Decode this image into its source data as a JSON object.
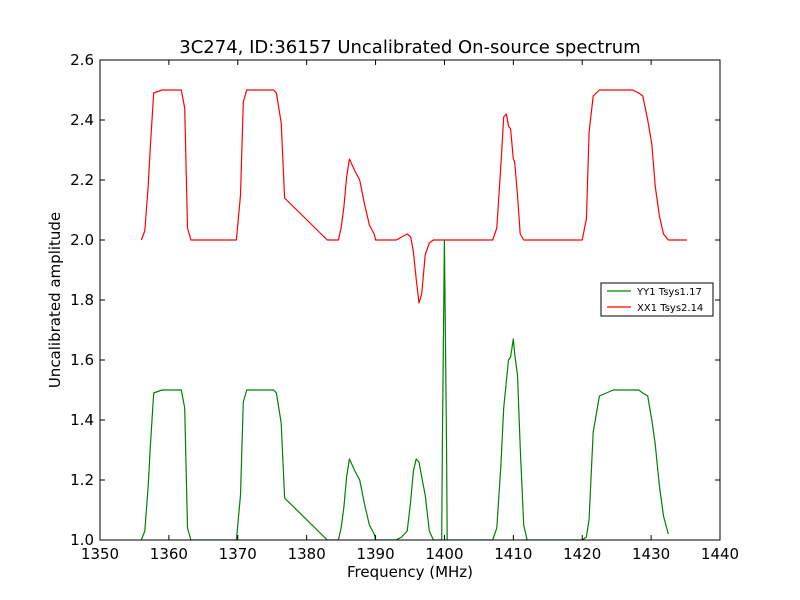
{
  "chart_data": {
    "type": "line",
    "title": "3C274, ID:36157 Uncalibrated On-source spectrum",
    "xlabel": "Frequency (MHz)",
    "ylabel": "Uncalibrated amplitude",
    "xlim": [
      1350,
      1440
    ],
    "ylim": [
      1.0,
      2.6
    ],
    "xticks": [
      1350,
      1360,
      1370,
      1380,
      1390,
      1400,
      1410,
      1420,
      1430,
      1440
    ],
    "yticks": [
      1.0,
      1.2,
      1.4,
      1.6,
      1.8,
      2.0,
      2.2,
      2.4,
      2.6
    ],
    "xtick_labels": [
      "1350",
      "1360",
      "1370",
      "1380",
      "1390",
      "1400",
      "1410",
      "1420",
      "1430",
      "1440"
    ],
    "ytick_labels": [
      "1.0",
      "1.2",
      "1.4",
      "1.6",
      "1.8",
      "2.0",
      "2.2",
      "2.4",
      "2.6"
    ],
    "grid": false,
    "legend_position": "center-right",
    "series": [
      {
        "name": "YY1 Tsys1.17",
        "color": "#008000",
        "x": [
          1356.0,
          1356.5,
          1357.0,
          1357.3,
          1357.8,
          1359.0,
          1360.5,
          1361.8,
          1362.3,
          1362.7,
          1363.2,
          1369.0,
          1369.8,
          1370.4,
          1370.8,
          1371.3,
          1372.5,
          1374.0,
          1375.2,
          1375.6,
          1376.3,
          1376.8,
          1383.0,
          1384.0,
          1384.6,
          1385.0,
          1385.4,
          1385.8,
          1386.2,
          1387.0,
          1387.7,
          1388.4,
          1389.1,
          1389.8,
          1390.0,
          1393.0,
          1393.8,
          1394.6,
          1395.1,
          1395.5,
          1395.9,
          1396.3,
          1396.7,
          1397.2,
          1397.8,
          1398.4,
          1399.0,
          1399.4,
          1399.6,
          1399.7,
          1400.0,
          1400.3,
          1400.4,
          1400.5,
          1401.0,
          1405.0,
          1407.0,
          1407.6,
          1408.2,
          1408.6,
          1409.0,
          1409.3,
          1409.6,
          1410.0,
          1410.2,
          1410.6,
          1411.0,
          1411.5,
          1412.0,
          1418.0,
          1420.0,
          1420.6,
          1421.0,
          1421.6,
          1422.5,
          1424.5,
          1426.0,
          1427.3,
          1428.2,
          1428.8,
          1429.5,
          1430.1,
          1430.6,
          1431.2,
          1431.8,
          1432.5
        ],
        "y": [
          1.0,
          1.03,
          1.18,
          1.31,
          1.49,
          1.5,
          1.5,
          1.5,
          1.44,
          1.04,
          1.0,
          1.0,
          1.0,
          1.15,
          1.46,
          1.5,
          1.5,
          1.5,
          1.5,
          1.49,
          1.39,
          1.14,
          1.0,
          1.0,
          1.0,
          1.04,
          1.11,
          1.21,
          1.27,
          1.23,
          1.2,
          1.12,
          1.05,
          1.02,
          1.0,
          1.0,
          1.01,
          1.03,
          1.13,
          1.23,
          1.27,
          1.26,
          1.21,
          1.15,
          1.03,
          1.0,
          1.0,
          1.0,
          1.0,
          1.33,
          2.0,
          1.33,
          1.0,
          1.0,
          1.0,
          1.0,
          1.0,
          1.04,
          1.25,
          1.44,
          1.53,
          1.6,
          1.61,
          1.67,
          1.62,
          1.55,
          1.31,
          1.05,
          1.0,
          1.0,
          1.0,
          1.01,
          1.07,
          1.36,
          1.48,
          1.5,
          1.5,
          1.5,
          1.5,
          1.49,
          1.48,
          1.4,
          1.32,
          1.18,
          1.08,
          1.02
        ]
      },
      {
        "name": "XX1 Tsys2.14",
        "color": "#ff0000",
        "x": [
          1356.0,
          1356.5,
          1357.0,
          1357.3,
          1357.8,
          1359.0,
          1360.5,
          1361.8,
          1362.3,
          1362.7,
          1363.2,
          1369.0,
          1369.8,
          1370.4,
          1370.8,
          1371.3,
          1372.5,
          1374.0,
          1375.2,
          1375.6,
          1376.3,
          1376.8,
          1383.0,
          1384.0,
          1384.6,
          1385.0,
          1385.4,
          1385.8,
          1386.2,
          1387.0,
          1387.7,
          1388.4,
          1389.1,
          1389.8,
          1390.0,
          1393.0,
          1393.8,
          1394.6,
          1395.1,
          1395.5,
          1395.9,
          1396.3,
          1396.7,
          1397.2,
          1397.8,
          1398.4,
          1399.0,
          1401.0,
          1405.0,
          1407.0,
          1407.6,
          1408.2,
          1408.6,
          1409.0,
          1409.3,
          1409.6,
          1410.0,
          1410.2,
          1410.6,
          1411.0,
          1411.5,
          1412.0,
          1418.0,
          1420.0,
          1420.6,
          1421.0,
          1421.6,
          1422.5,
          1424.5,
          1426.0,
          1427.3,
          1428.2,
          1428.8,
          1429.5,
          1430.1,
          1430.6,
          1431.2,
          1431.8,
          1432.5,
          1435.2
        ],
        "y": [
          2.0,
          2.03,
          2.18,
          2.31,
          2.49,
          2.5,
          2.5,
          2.5,
          2.44,
          2.04,
          2.0,
          2.0,
          2.0,
          2.15,
          2.46,
          2.5,
          2.5,
          2.5,
          2.5,
          2.49,
          2.39,
          2.14,
          2.0,
          2.0,
          2.0,
          2.04,
          2.11,
          2.21,
          2.27,
          2.23,
          2.2,
          2.12,
          2.05,
          2.02,
          2.0,
          2.0,
          2.01,
          2.02,
          2.01,
          1.96,
          1.87,
          1.79,
          1.82,
          1.95,
          1.99,
          2.0,
          2.0,
          2.0,
          2.0,
          2.0,
          2.04,
          2.25,
          2.41,
          2.42,
          2.38,
          2.37,
          2.27,
          2.26,
          2.15,
          2.02,
          2.0,
          2.0,
          2.0,
          2.0,
          2.07,
          2.36,
          2.48,
          2.5,
          2.5,
          2.5,
          2.5,
          2.49,
          2.48,
          2.4,
          2.32,
          2.18,
          2.08,
          2.02,
          2.0,
          2.0
        ]
      }
    ]
  }
}
